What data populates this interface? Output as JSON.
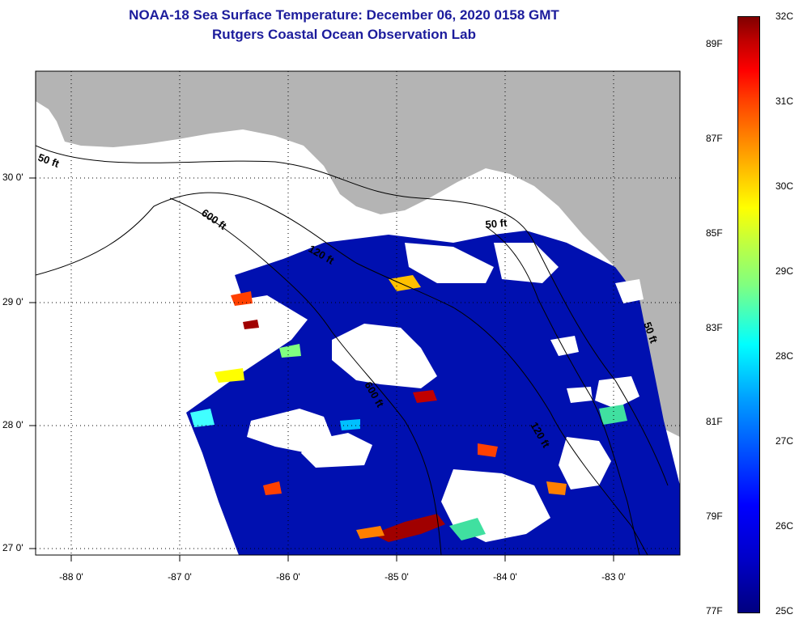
{
  "title": {
    "line1": "NOAA-18 Sea Surface Temperature:  December 06, 2020 0158 GMT",
    "line2": "Rutgers Coastal Ocean Observation Lab"
  },
  "map": {
    "lat_labels": [
      "30 0'",
      "29 0'",
      "28 0'",
      "27 0'"
    ],
    "lon_labels": [
      "-88 0'",
      "-87 0'",
      "-86 0'",
      "-85 0'",
      "-84 0'",
      "-83 0'"
    ],
    "contour_labels": [
      "50 ft",
      "600 ft",
      "120 ft",
      "50 ft",
      "600 ft",
      "120 ft",
      "50 ft"
    ],
    "colors": {
      "land": "#b4b4b4",
      "cloud": "#ffffff",
      "cold_water": "#0010b0"
    }
  },
  "colorbar": {
    "fahrenheit_labels": [
      "89F",
      "87F",
      "85F",
      "83F",
      "81F",
      "79F",
      "77F"
    ],
    "celsius_labels": [
      "32C",
      "31C",
      "30C",
      "29C",
      "28C",
      "27C",
      "26C",
      "25C"
    ],
    "range_c": [
      25,
      32
    ]
  }
}
